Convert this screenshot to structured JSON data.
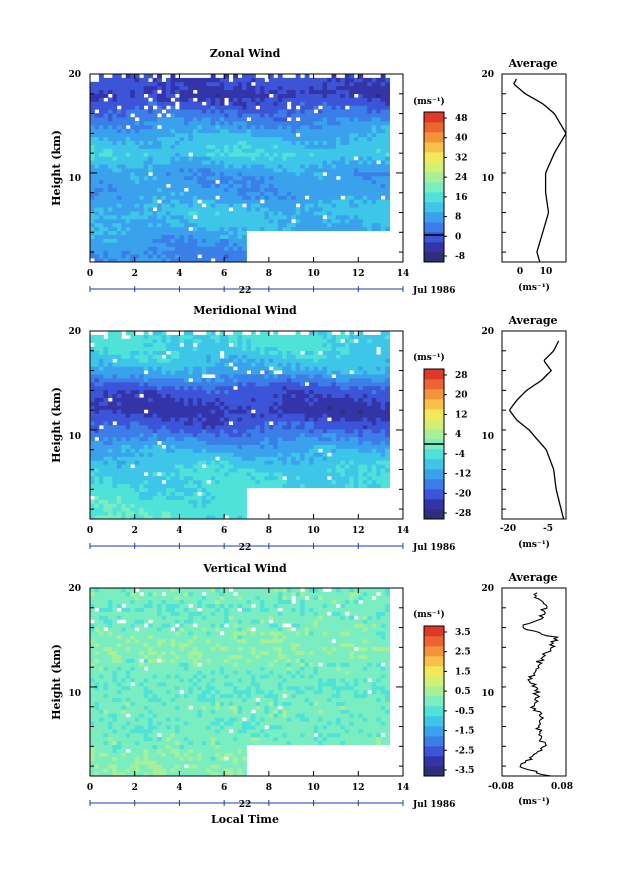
{
  "panels": [
    {
      "title": "Zonal Wind",
      "ylabel": "Height (km)",
      "y_ticks": [
        "10",
        "20"
      ],
      "x_ticks": [
        "0",
        "2",
        "4",
        "6",
        "8",
        "10",
        "12",
        "14"
      ],
      "day_tick": "22",
      "month_label": "Jul 1986",
      "colorbar_unit": "(ms⁻¹)",
      "colorbar_ticks": [
        "48",
        "40",
        "32",
        "24",
        "16",
        "8",
        "0",
        "-8"
      ],
      "profile_title": "Average",
      "profile_x_ticks": [
        "0",
        "10"
      ],
      "profile_xlabel": "(ms⁻¹)",
      "profile_y_ticks": [
        "10",
        "20"
      ]
    },
    {
      "title": "Meridional Wind",
      "ylabel": "Height (km)",
      "y_ticks": [
        "10",
        "20"
      ],
      "x_ticks": [
        "0",
        "2",
        "4",
        "6",
        "8",
        "10",
        "12",
        "14"
      ],
      "day_tick": "22",
      "month_label": "Jul 1986",
      "colorbar_unit": "(ms⁻¹)",
      "colorbar_ticks": [
        "28",
        "20",
        "12",
        "4",
        "-4",
        "-12",
        "-20",
        "-28"
      ],
      "profile_title": "Average",
      "profile_x_ticks": [
        "-20",
        "-5"
      ],
      "profile_xlabel": "(ms⁻¹)",
      "profile_y_ticks": [
        "10",
        "20"
      ]
    },
    {
      "title": "Vertical Wind",
      "ylabel": "Height (km)",
      "y_ticks": [
        "10",
        "20"
      ],
      "x_ticks": [
        "0",
        "2",
        "4",
        "6",
        "8",
        "10",
        "12",
        "14"
      ],
      "day_tick": "22",
      "month_label": "Jul 1986",
      "colorbar_unit": "(ms⁻¹)",
      "colorbar_ticks": [
        "3.5",
        "2.5",
        "1.5",
        "0.5",
        "-0.5",
        "-1.5",
        "-2.5",
        "-3.5"
      ],
      "profile_title": "Average",
      "profile_x_ticks": [
        "-0.08",
        "0.08"
      ],
      "profile_xlabel": "(ms⁻¹)",
      "profile_y_ticks": [
        "10",
        "20"
      ]
    }
  ],
  "xlabel": "Local Time",
  "colors": {
    "scale": [
      "#2e2f78",
      "#3234a8",
      "#3c55d8",
      "#3c7ee8",
      "#3aa2ec",
      "#3ec6e8",
      "#4ee2d8",
      "#7aeec0",
      "#a8f098",
      "#d4f070",
      "#f4e858",
      "#f8c048",
      "#f49438",
      "#ec6430",
      "#e03828"
    ]
  },
  "chart_data": [
    {
      "type": "heatmap",
      "title": "Zonal Wind",
      "x": "local time (h)",
      "xlim": [
        0,
        14
      ],
      "ylim": [
        1,
        20
      ],
      "data_extent_x": [
        0,
        13.4
      ],
      "missing_block": {
        "x": [
          7,
          13.4
        ],
        "y": [
          1,
          4
        ]
      },
      "colorbar_levels": [
        -8,
        0,
        8,
        16,
        24,
        32,
        40,
        48
      ],
      "zero_contour": true,
      "height_km": [
        2,
        4,
        6,
        8,
        10,
        12,
        14,
        16,
        18,
        19
      ],
      "value_ms": [
        6,
        10,
        12,
        8,
        8,
        14,
        10,
        4,
        -2,
        0
      ],
      "average_profile": {
        "height_km": [
          1,
          2,
          4,
          6,
          8,
          10,
          12,
          14,
          16,
          17,
          18,
          19,
          19.5
        ],
        "value_ms": [
          6,
          5,
          7,
          9,
          8,
          8,
          11,
          15,
          11,
          7,
          1,
          -3,
          -2
        ]
      }
    },
    {
      "type": "heatmap",
      "title": "Meridional Wind",
      "x": "local time (h)",
      "xlim": [
        0,
        14
      ],
      "ylim": [
        1,
        20
      ],
      "data_extent_x": [
        0,
        13.4
      ],
      "missing_block": {
        "x": [
          7,
          13.4
        ],
        "y": [
          1,
          4
        ]
      },
      "colorbar_levels": [
        -28,
        -20,
        -12,
        -4,
        4,
        12,
        20,
        28
      ],
      "zero_contour": true,
      "height_km": [
        2,
        4,
        6,
        8,
        10,
        12,
        14,
        16,
        18,
        19
      ],
      "value_ms": [
        -3,
        -5,
        -6,
        -10,
        -17,
        -22,
        -19,
        -10,
        -6,
        -5
      ],
      "average_profile": {
        "height_km": [
          1,
          2,
          4,
          6,
          8,
          10,
          11,
          12,
          13,
          14,
          15,
          16,
          17,
          18,
          19
        ],
        "value_ms": [
          -3,
          -4,
          -6,
          -7,
          -10,
          -17,
          -22,
          -25,
          -22,
          -18,
          -12,
          -8,
          -11,
          -7,
          -5
        ]
      }
    },
    {
      "type": "heatmap",
      "title": "Vertical Wind",
      "x": "local time (h)",
      "xlim": [
        0,
        14
      ],
      "ylim": [
        1,
        20
      ],
      "data_extent_x": [
        0,
        13.4
      ],
      "missing_block": {
        "x": [
          7,
          13.4
        ],
        "y": [
          1,
          4
        ]
      },
      "colorbar_levels": [
        -3.5,
        -2.5,
        -1.5,
        -0.5,
        0.5,
        1.5,
        2.5,
        3.5
      ],
      "height_km": [
        2,
        4,
        6,
        8,
        10,
        12,
        14,
        16,
        18,
        19
      ],
      "value_ms": [
        0.1,
        0,
        -0.1,
        0,
        -0.2,
        0,
        0.1,
        0,
        -0.1,
        0
      ],
      "average_profile": {
        "height_km": [
          1,
          2,
          3,
          4,
          5,
          6,
          7,
          8,
          9,
          10,
          11,
          12,
          13,
          14,
          15,
          16,
          17,
          18,
          19,
          19.5
        ],
        "value_ms": [
          0.04,
          -0.04,
          0.0,
          0.03,
          0.02,
          0.01,
          0.02,
          0.0,
          0.01,
          0.0,
          -0.01,
          0.01,
          0.02,
          0.05,
          0.06,
          -0.04,
          0.02,
          0.03,
          0.01,
          0.0
        ]
      }
    }
  ]
}
